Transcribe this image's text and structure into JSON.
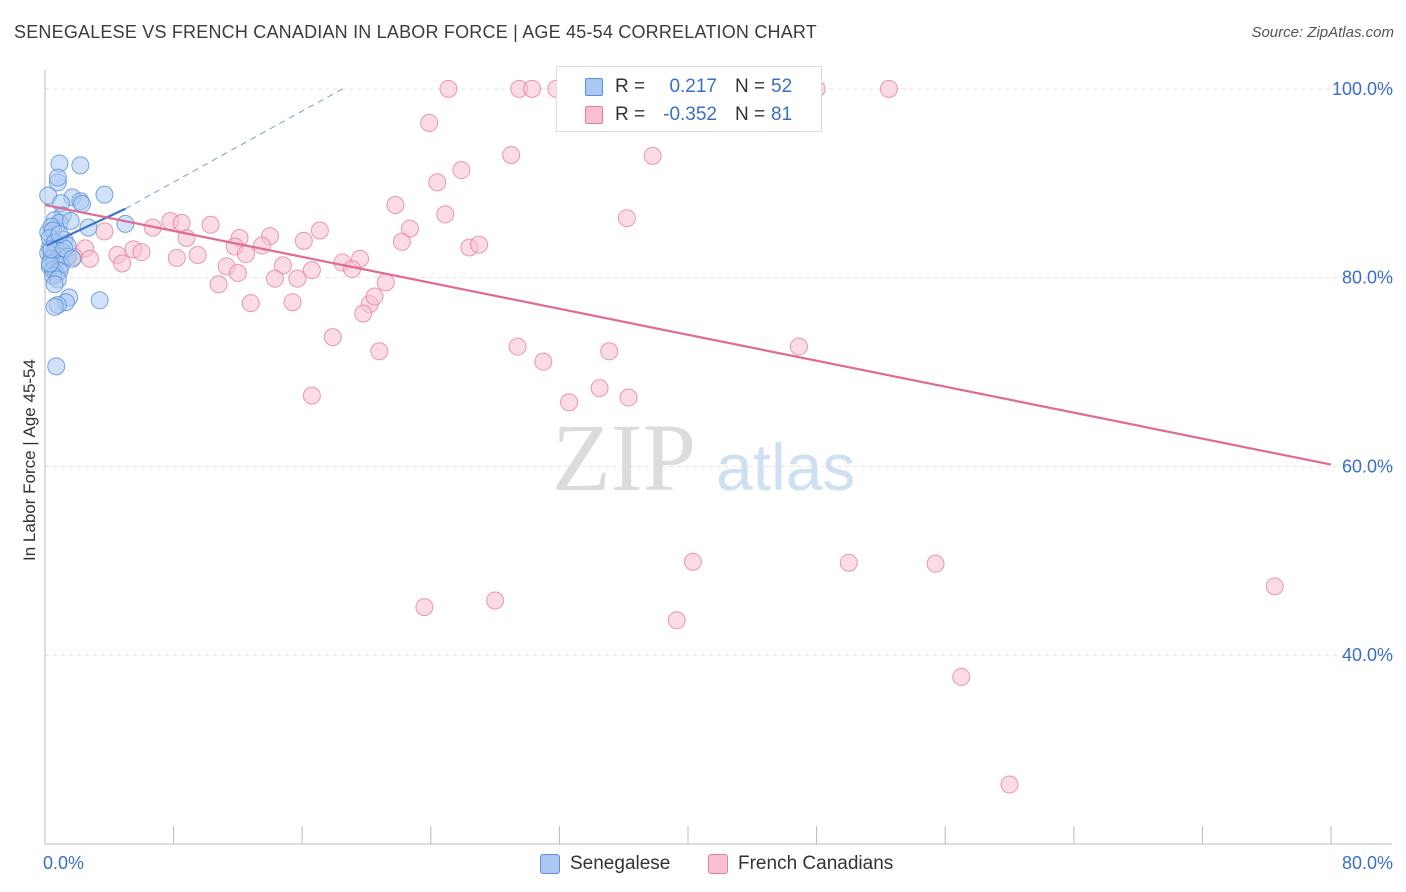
{
  "header": {
    "title": "SENEGALESE VS FRENCH CANADIAN IN LABOR FORCE | AGE 45-54 CORRELATION CHART",
    "source": "Source: ZipAtlas.com"
  },
  "watermark": {
    "zip": "ZIP",
    "atlas": "atlas"
  },
  "legend_top": {
    "rows": [
      {
        "r_label": "R =",
        "r_value": "0.217",
        "n_label": "N =",
        "n_value": "52"
      },
      {
        "r_label": "R =",
        "r_value": "-0.352",
        "n_label": "N =",
        "n_value": "81"
      }
    ]
  },
  "legend_bottom": {
    "items": [
      {
        "label": "Senegalese"
      },
      {
        "label": "French Canadians"
      }
    ]
  },
  "colors": {
    "senegalese_fill": "#a9c8f2",
    "senegalese_stroke": "#5b8fd9",
    "senegalese_line": "#3a74cc",
    "french_fill": "#f7bfd0",
    "french_stroke": "#e47fa0",
    "french_line": "#e06a96",
    "grid": "#e3e3e3",
    "axis_label": "#3a6fc9"
  },
  "chart_data": {
    "type": "scatter",
    "title": "SENEGALESE VS FRENCH CANADIAN IN LABOR FORCE | AGE 45-54 CORRELATION CHART",
    "xlabel": "",
    "ylabel": "In Labor Force | Age 45-54",
    "xlim": [
      0,
      80
    ],
    "ylim": [
      20,
      102
    ],
    "x_tick_labels": [
      {
        "value": 0,
        "label": "0.0%"
      },
      {
        "value": 80,
        "label": "80.0%"
      }
    ],
    "y_tick_labels": [
      {
        "value": 100,
        "label": "100.0%"
      },
      {
        "value": 80,
        "label": "80.0%"
      },
      {
        "value": 60,
        "label": "60.0%"
      },
      {
        "value": 40,
        "label": "40.0%"
      }
    ],
    "grid": true,
    "legend_position": "top-center",
    "series": [
      {
        "name": "Senegalese",
        "R": 0.217,
        "N": 52,
        "trend": {
          "x0": 0.1,
          "y0": 83.4,
          "x1": 5.0,
          "y1": 87.3,
          "dashed_to_x": 18.5,
          "dashed_to_y": 100
        },
        "points": [
          [
            0.2,
            84.8
          ],
          [
            0.3,
            83.2
          ],
          [
            0.4,
            82.3
          ],
          [
            0.5,
            81.0
          ],
          [
            0.2,
            88.7
          ],
          [
            0.8,
            90.1
          ],
          [
            0.9,
            92.1
          ],
          [
            0.8,
            90.6
          ],
          [
            2.2,
            91.9
          ],
          [
            3.7,
            88.8
          ],
          [
            1.7,
            88.5
          ],
          [
            1.0,
            87.9
          ],
          [
            2.2,
            88.1
          ],
          [
            2.3,
            87.8
          ],
          [
            1.1,
            86.6
          ],
          [
            0.6,
            86.1
          ],
          [
            0.9,
            85.8
          ],
          [
            1.6,
            86.0
          ],
          [
            0.4,
            85.4
          ],
          [
            2.7,
            85.3
          ],
          [
            5.0,
            85.7
          ],
          [
            0.5,
            85.0
          ],
          [
            0.3,
            84.2
          ],
          [
            1.2,
            84.0
          ],
          [
            0.6,
            83.7
          ],
          [
            1.4,
            83.4
          ],
          [
            0.7,
            82.9
          ],
          [
            1.1,
            82.7
          ],
          [
            0.2,
            82.6
          ],
          [
            0.9,
            82.2
          ],
          [
            0.4,
            82.0
          ],
          [
            1.4,
            82.2
          ],
          [
            0.6,
            81.7
          ],
          [
            1.0,
            81.3
          ],
          [
            0.3,
            81.2
          ],
          [
            0.5,
            80.8
          ],
          [
            0.7,
            80.4
          ],
          [
            0.9,
            80.7
          ],
          [
            0.5,
            80.2
          ],
          [
            0.3,
            81.5
          ],
          [
            0.8,
            79.8
          ],
          [
            0.6,
            79.3
          ],
          [
            1.5,
            77.9
          ],
          [
            1.3,
            77.4
          ],
          [
            3.4,
            77.6
          ],
          [
            0.8,
            77.1
          ],
          [
            0.6,
            76.9
          ],
          [
            0.7,
            70.6
          ],
          [
            0.4,
            83.0
          ],
          [
            1.2,
            83.1
          ],
          [
            1.7,
            82.0
          ],
          [
            0.9,
            84.6
          ]
        ]
      },
      {
        "name": "French Canadians",
        "R": -0.352,
        "N": 81,
        "trend": {
          "x0": 0,
          "y0": 87.7,
          "x1": 80,
          "y1": 60.2
        },
        "points": [
          [
            25.1,
            100.0
          ],
          [
            29.5,
            100.0
          ],
          [
            30.3,
            100.0
          ],
          [
            31.8,
            100.0
          ],
          [
            33.1,
            100.0
          ],
          [
            35.0,
            100.0
          ],
          [
            39.1,
            100.0
          ],
          [
            44.8,
            100.0
          ],
          [
            48.0,
            100.0
          ],
          [
            52.5,
            100.0
          ],
          [
            23.9,
            96.4
          ],
          [
            29.0,
            93.0
          ],
          [
            37.8,
            92.9
          ],
          [
            25.9,
            91.4
          ],
          [
            24.4,
            90.1
          ],
          [
            21.8,
            87.7
          ],
          [
            24.9,
            86.7
          ],
          [
            36.2,
            86.3
          ],
          [
            7.8,
            86.0
          ],
          [
            10.3,
            85.6
          ],
          [
            6.7,
            85.3
          ],
          [
            17.1,
            85.0
          ],
          [
            22.7,
            85.2
          ],
          [
            3.7,
            84.9
          ],
          [
            8.8,
            84.2
          ],
          [
            12.1,
            84.2
          ],
          [
            14.0,
            84.4
          ],
          [
            16.1,
            83.9
          ],
          [
            22.2,
            83.8
          ],
          [
            26.4,
            83.2
          ],
          [
            5.5,
            83.0
          ],
          [
            11.8,
            83.3
          ],
          [
            13.5,
            83.4
          ],
          [
            2.5,
            83.1
          ],
          [
            0.9,
            82.8
          ],
          [
            1.2,
            82.3
          ],
          [
            6.0,
            82.7
          ],
          [
            4.5,
            82.4
          ],
          [
            1.8,
            82.2
          ],
          [
            2.8,
            82.0
          ],
          [
            8.2,
            82.1
          ],
          [
            9.5,
            82.4
          ],
          [
            12.5,
            82.5
          ],
          [
            19.6,
            82.0
          ],
          [
            18.5,
            81.6
          ],
          [
            4.8,
            81.5
          ],
          [
            11.3,
            81.2
          ],
          [
            14.8,
            81.3
          ],
          [
            16.6,
            80.8
          ],
          [
            19.1,
            80.9
          ],
          [
            14.3,
            79.9
          ],
          [
            15.7,
            79.9
          ],
          [
            21.2,
            79.5
          ],
          [
            10.8,
            79.3
          ],
          [
            15.4,
            77.4
          ],
          [
            12.8,
            77.3
          ],
          [
            20.2,
            77.2
          ],
          [
            19.8,
            76.2
          ],
          [
            17.9,
            73.7
          ],
          [
            20.8,
            72.2
          ],
          [
            29.4,
            72.7
          ],
          [
            35.1,
            72.2
          ],
          [
            31.0,
            71.1
          ],
          [
            46.9,
            72.7
          ],
          [
            34.5,
            68.3
          ],
          [
            32.6,
            66.8
          ],
          [
            16.6,
            67.5
          ],
          [
            36.3,
            67.3
          ],
          [
            40.3,
            49.9
          ],
          [
            50.0,
            49.8
          ],
          [
            55.4,
            49.7
          ],
          [
            76.5,
            47.3
          ],
          [
            28.0,
            45.8
          ],
          [
            23.6,
            45.1
          ],
          [
            39.3,
            43.7
          ],
          [
            57.0,
            37.7
          ],
          [
            60.0,
            26.3
          ],
          [
            8.5,
            85.8
          ],
          [
            20.5,
            78.0
          ],
          [
            12.0,
            80.5
          ],
          [
            27.0,
            83.5
          ]
        ]
      }
    ]
  }
}
